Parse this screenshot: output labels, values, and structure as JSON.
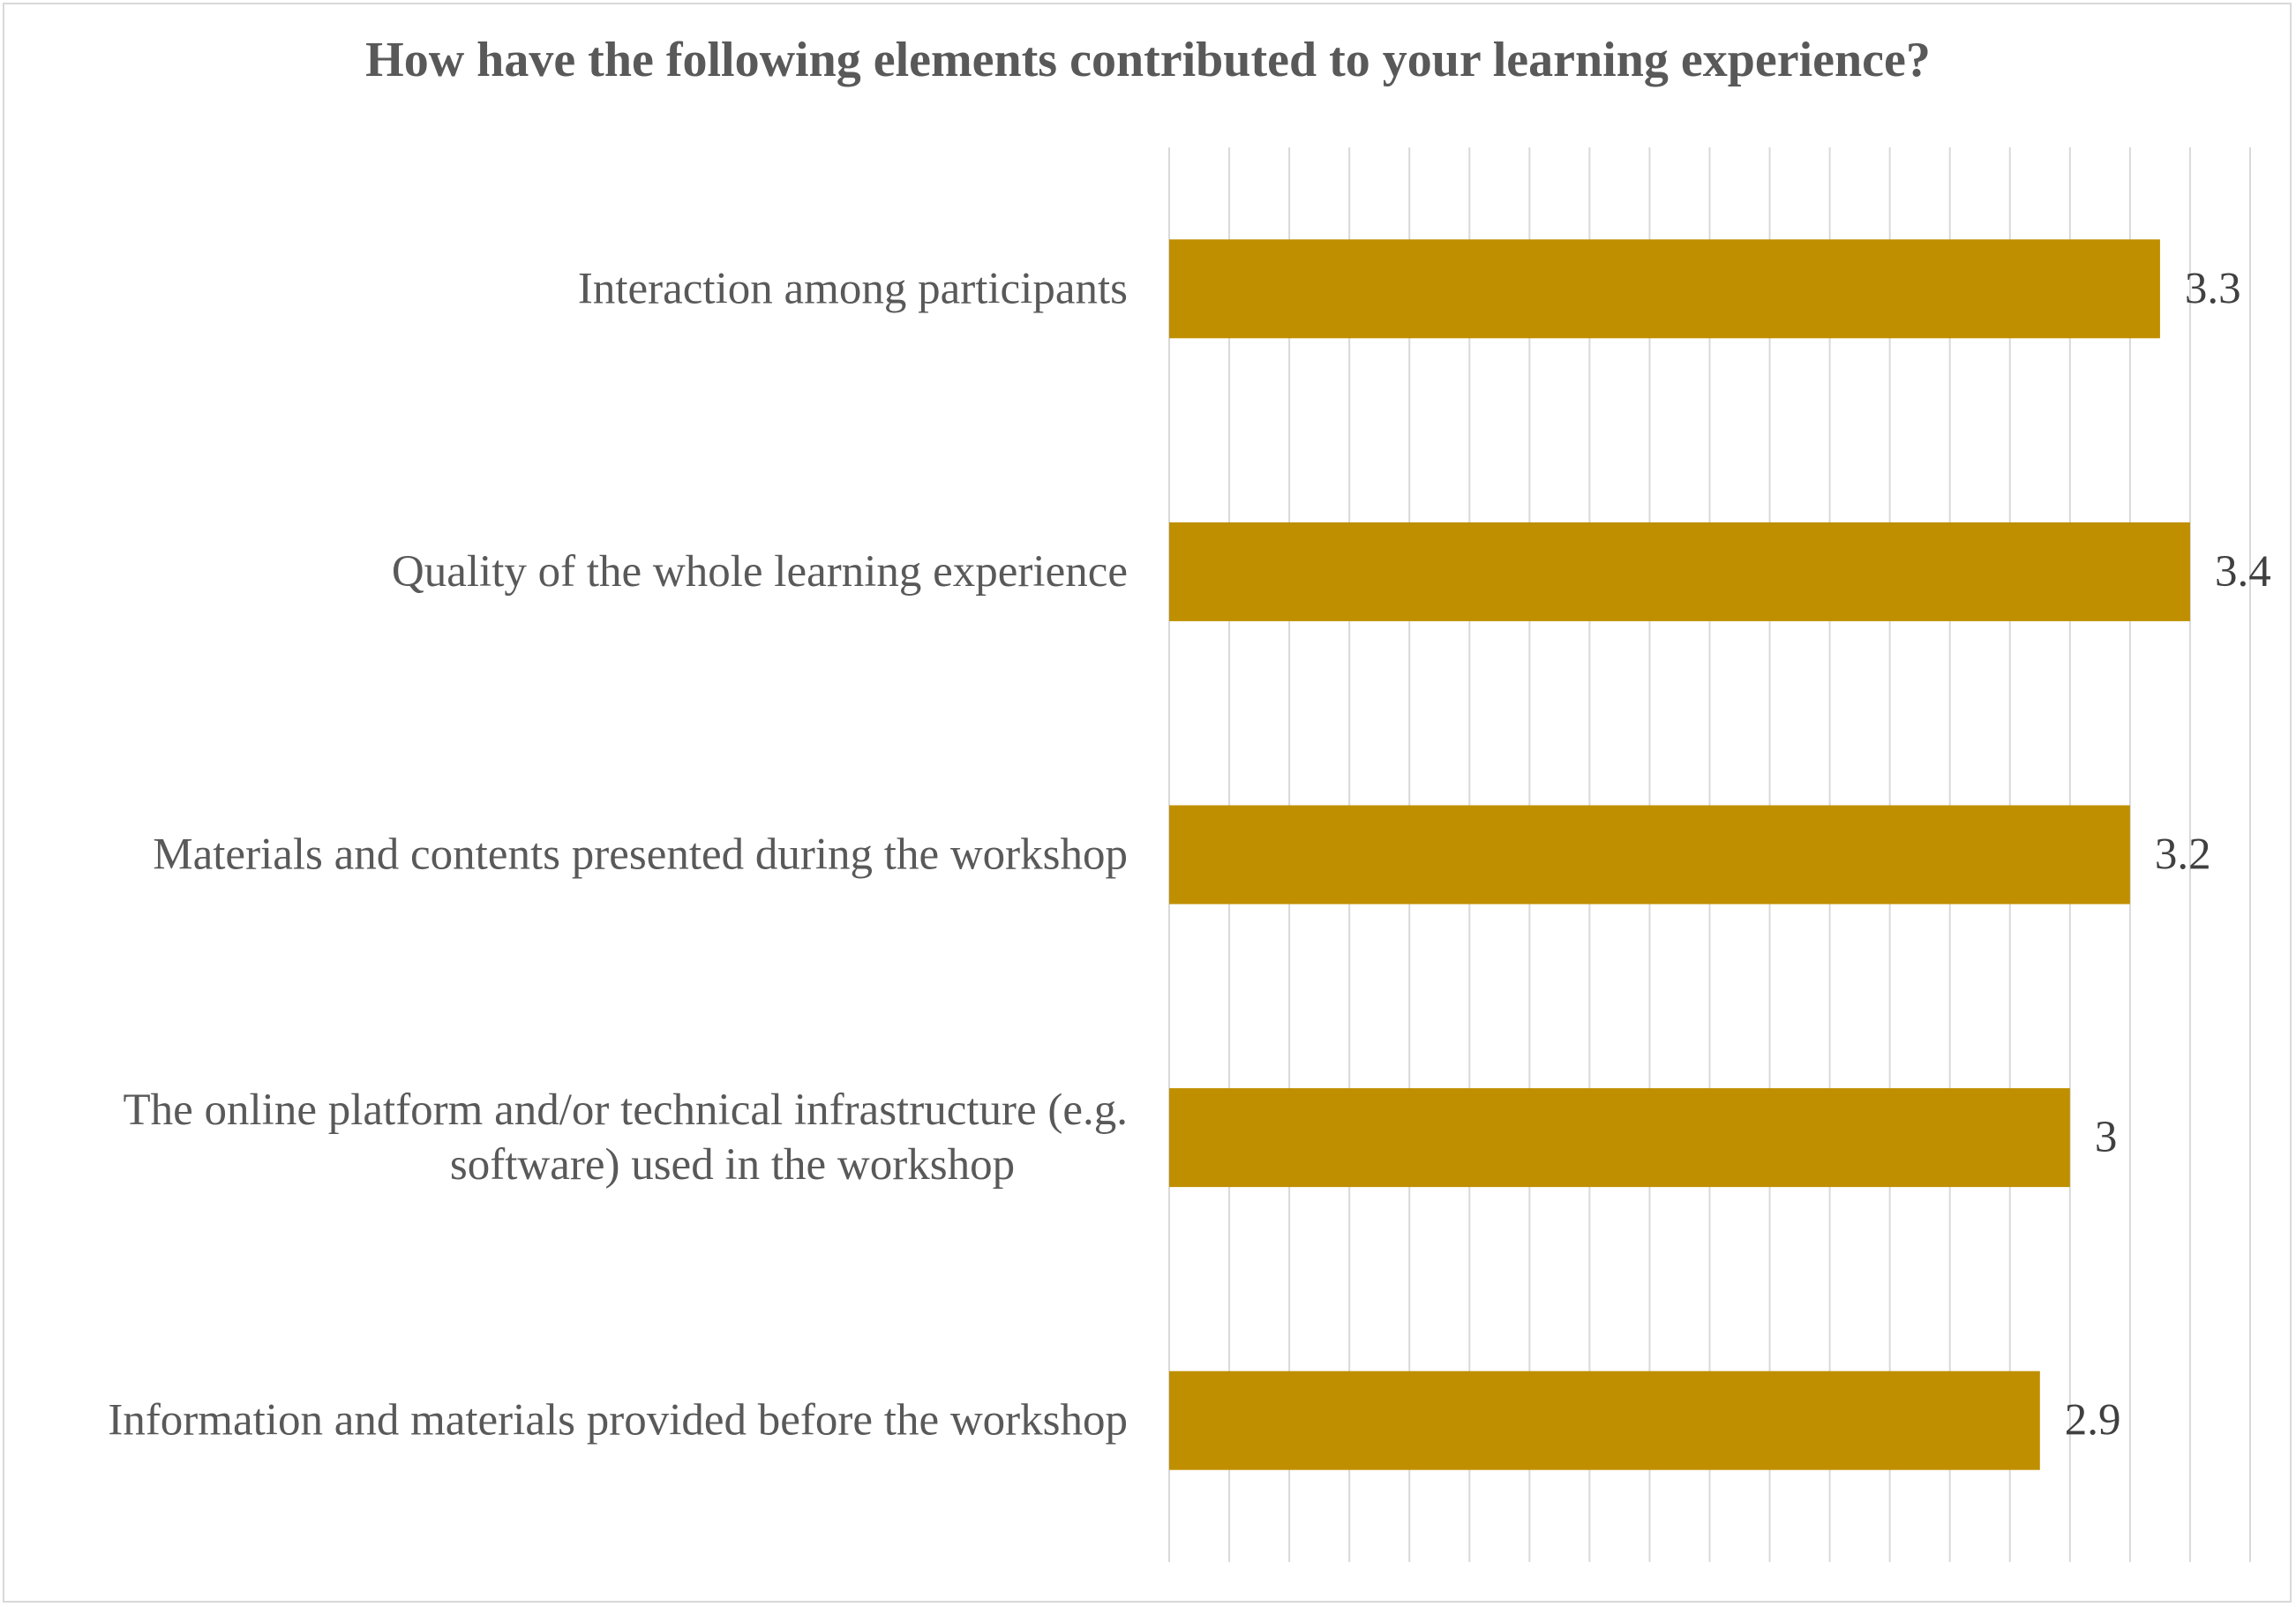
{
  "chart_data": {
    "type": "bar",
    "orientation": "horizontal",
    "title": "How have the following elements contributed to your learning experience?",
    "xlabel": "",
    "ylabel": "",
    "categories": [
      "Interaction among participants",
      "Quality of the whole learning experience",
      "Materials and contents presented during the workshop",
      "The online platform and/or technical infrastructure (e.g. software) used in the workshop",
      "Information and materials provided before the workshop"
    ],
    "category_label_lines": [
      [
        "Interaction among participants"
      ],
      [
        "Quality of the whole learning experience"
      ],
      [
        "Materials and contents presented during the workshop"
      ],
      [
        "The online platform and/or technical infrastructure (e.g.",
        "software) used in the workshop"
      ],
      [
        "Information and materials provided before the workshop"
      ]
    ],
    "values": [
      3.3,
      3.4,
      3.2,
      3,
      2.9
    ],
    "value_labels": [
      "3.3",
      "3.4",
      "3.2",
      "3",
      "2.9"
    ],
    "xlim": [
      0,
      3.6
    ],
    "grid_step": 0.2,
    "grid": "vertical",
    "legend": "none",
    "tick_labels_shown": false,
    "bar_color": "#BF8F00",
    "grid_color": "#D9D9D9",
    "text_color": "#595959"
  }
}
